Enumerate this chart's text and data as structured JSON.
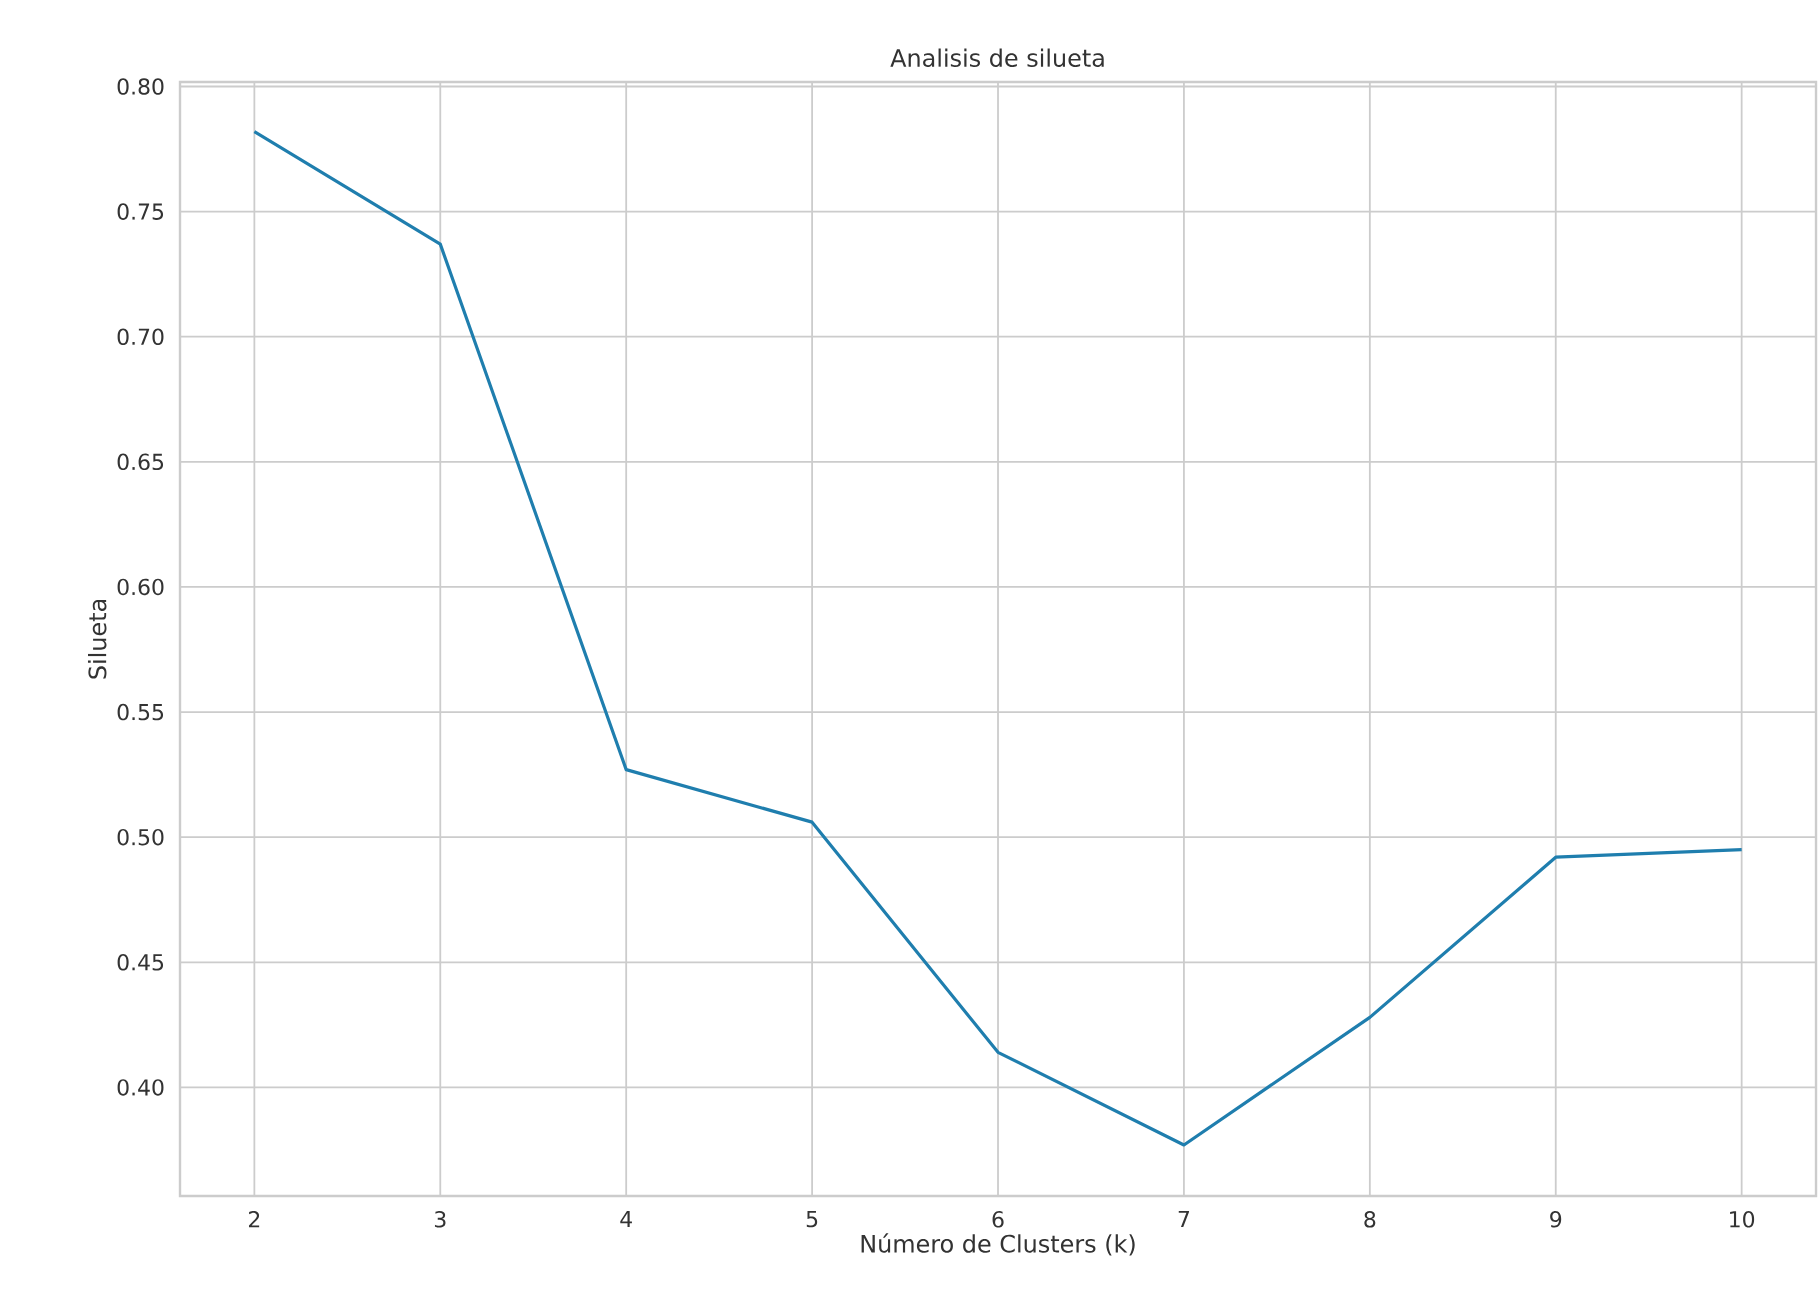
{
  "chart_data": {
    "type": "line",
    "title": "Analisis de silueta",
    "xlabel": "Número de Clusters (k)",
    "ylabel": "Silueta",
    "x": [
      2,
      3,
      4,
      5,
      6,
      7,
      8,
      9,
      10
    ],
    "series": [
      {
        "color": "#1f7eae",
        "values": [
          0.782,
          0.737,
          0.527,
          0.506,
          0.414,
          0.377,
          0.428,
          0.492,
          0.495
        ]
      }
    ],
    "xlim": [
      1.6,
      10.4
    ],
    "ylim": [
      0.3566,
      0.8018
    ],
    "xticks": [
      2,
      3,
      4,
      5,
      6,
      7,
      8,
      9,
      10
    ],
    "yticks": [
      {
        "value": 0.4,
        "label": "0.40"
      },
      {
        "value": 0.45,
        "label": "0.45"
      },
      {
        "value": 0.5,
        "label": "0.50"
      },
      {
        "value": 0.55,
        "label": "0.55"
      },
      {
        "value": 0.6,
        "label": "0.60"
      },
      {
        "value": 0.65,
        "label": "0.65"
      },
      {
        "value": 0.7,
        "label": "0.70"
      },
      {
        "value": 0.75,
        "label": "0.75"
      },
      {
        "value": 0.8,
        "label": "0.80"
      }
    ],
    "grid": true,
    "marker": "none",
    "line_style": "solid"
  }
}
